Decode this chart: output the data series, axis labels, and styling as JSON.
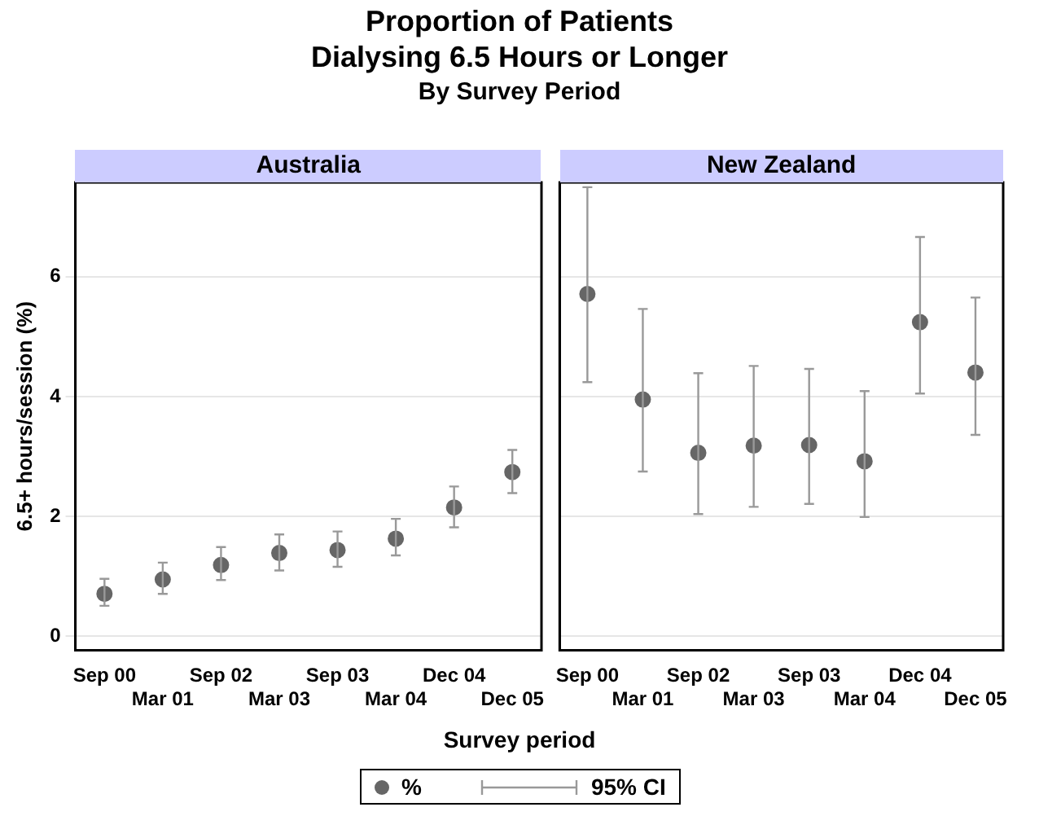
{
  "chart_data": [
    {
      "type": "scatter",
      "title": "Proportion of Patients Dialysing 6.5 Hours or Longer",
      "subtitle": "By Survey Period",
      "ylabel": "6.5+ hours/session (%)",
      "xlabel": "Survey period",
      "annotations": [
        "Australia",
        "95% CI"
      ],
      "categories": [
        "Sep 00",
        "Mar 01",
        "Sep 02",
        "Mar 03",
        "Sep 03",
        "Mar 04",
        "Dec 04",
        "Dec 05"
      ],
      "series": [
        {
          "name": "%",
          "color": "#666666",
          "values": [
            0.71,
            0.95,
            1.19,
            1.39,
            1.44,
            1.63,
            2.15,
            2.74
          ],
          "errors": [
            [
              0.51,
              0.96
            ],
            [
              0.71,
              1.23
            ],
            [
              0.94,
              1.49
            ],
            [
              1.1,
              1.7
            ],
            [
              1.16,
              1.75
            ],
            [
              1.35,
              1.96
            ],
            [
              1.82,
              2.5
            ],
            [
              2.39,
              3.11
            ]
          ]
        }
      ],
      "ylim": [
        -0.23,
        7.57
      ],
      "yticks": [
        0,
        2,
        4,
        6
      ],
      "grid": "y",
      "legend": "bottom",
      "marker": "circle"
    },
    {
      "type": "scatter",
      "annotations": [
        "New Zealand"
      ],
      "categories": [
        "Sep 00",
        "Mar 01",
        "Sep 02",
        "Mar 03",
        "Sep 03",
        "Mar 04",
        "Dec 04",
        "Dec 05"
      ],
      "series": [
        {
          "color": "#666666",
          "values": [
            5.71,
            3.95,
            3.06,
            3.18,
            3.19,
            2.92,
            5.24,
            4.4
          ],
          "errors": [
            [
              4.24,
              7.49
            ],
            [
              2.75,
              5.46
            ],
            [
              2.04,
              4.39
            ],
            [
              2.16,
              4.51
            ],
            [
              2.21,
              4.46
            ],
            [
              1.99,
              4.09
            ],
            [
              4.05,
              6.66
            ],
            [
              3.36,
              5.65
            ]
          ]
        }
      ],
      "ylim": [
        -0.23,
        7.57
      ],
      "yticks": [
        0,
        2,
        4,
        6
      ],
      "grid": "y",
      "marker": "circle",
      "tick_labels": "x"
    }
  ]
}
